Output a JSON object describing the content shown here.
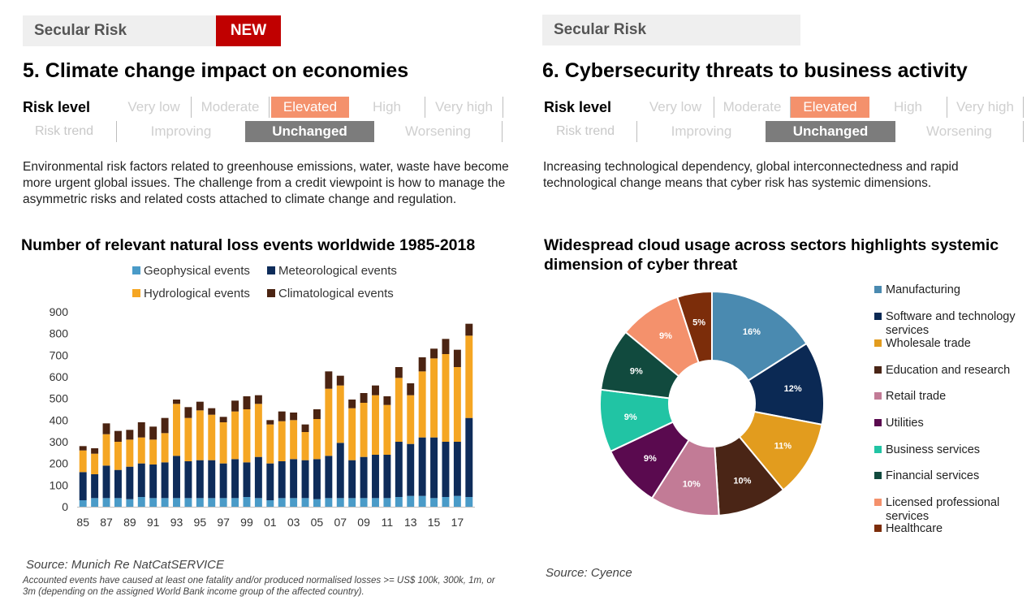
{
  "left": {
    "tag": "Secular Risk",
    "new_tag": "NEW",
    "title": "5. Climate change impact on economies",
    "risk_level_label": "Risk level",
    "risk_level_options": [
      "Very low",
      "Moderate",
      "Elevated",
      "High",
      "Very high"
    ],
    "risk_level_selected": "Elevated",
    "risk_trend_label": "Risk trend",
    "risk_trend_options": [
      "Improving",
      "Unchanged",
      "Worsening"
    ],
    "risk_trend_selected": "Unchanged",
    "description": "Environmental risk factors related to greenhouse emissions, water, waste have become more urgent global issues.  The challenge from a credit viewpoint is how to manage the asymmetric risks and related costs attached to climate change and regulation.",
    "chart_title": "Number of relevant natural loss events worldwide 1985-2018",
    "source": "Source: Munich Re NatCatSERVICE",
    "footnote": "Accounted events have caused at least one fatality and/or produced normalised losses >= US$ 100k, 300k, 1m, or 3m (depending on the assigned World Bank income group of the affected country)."
  },
  "right": {
    "tag": "Secular Risk",
    "title": "6. Cybersecurity threats to business activity",
    "risk_level_label": "Risk level",
    "risk_level_options": [
      "Very low",
      "Moderate",
      "Elevated",
      "High",
      "Very high"
    ],
    "risk_level_selected": "Elevated",
    "risk_trend_label": "Risk trend",
    "risk_trend_options": [
      "Improving",
      "Unchanged",
      "Worsening"
    ],
    "risk_trend_selected": "Unchanged",
    "description": "Increasing technological dependency, global interconnectedness and rapid technological change means that cyber risk has systemic dimensions.",
    "chart_title": "Widespread cloud usage across sectors highlights systemic dimension of cyber threat",
    "source": "Source: Cyence"
  },
  "colors": {
    "geophysical": "#4a9bc8",
    "meteorological": "#0e2c5a",
    "hydrological": "#f5a623",
    "climatological": "#4b2412",
    "elevated": "#f4916c",
    "unchanged": "#7c7c7c",
    "new_tag": "#c00000"
  },
  "chart_data": [
    {
      "type": "bar",
      "stacked": true,
      "title": "Number of relevant natural loss events worldwide 1985-2018",
      "categories": [
        "85",
        "86",
        "87",
        "88",
        "89",
        "90",
        "91",
        "92",
        "93",
        "94",
        "95",
        "96",
        "97",
        "98",
        "99",
        "00",
        "01",
        "02",
        "03",
        "04",
        "05",
        "06",
        "07",
        "08",
        "09",
        "10",
        "11",
        "12",
        "13",
        "14",
        "15",
        "16",
        "17",
        "18"
      ],
      "x_tick_labels": [
        "85",
        "87",
        "89",
        "91",
        "93",
        "95",
        "97",
        "99",
        "01",
        "03",
        "05",
        "07",
        "09",
        "11",
        "13",
        "15",
        "17"
      ],
      "y_ticks": [
        "0",
        "100",
        "200",
        "300",
        "400",
        "500",
        "600",
        "700",
        "800",
        "900"
      ],
      "ylim": [
        0,
        900
      ],
      "grid": false,
      "legend_position": "top",
      "series": [
        {
          "name": "Geophysical events",
          "color": "#4a9bc8",
          "values": [
            30,
            40,
            40,
            40,
            35,
            45,
            40,
            40,
            40,
            40,
            40,
            40,
            40,
            40,
            45,
            40,
            30,
            40,
            40,
            40,
            35,
            40,
            40,
            40,
            40,
            40,
            40,
            45,
            50,
            50,
            40,
            45,
            50,
            45
          ]
        },
        {
          "name": "Meteorological events",
          "color": "#0e2c5a",
          "values": [
            130,
            110,
            150,
            130,
            150,
            155,
            155,
            165,
            195,
            170,
            175,
            175,
            160,
            180,
            160,
            190,
            170,
            170,
            180,
            175,
            185,
            195,
            255,
            175,
            190,
            200,
            200,
            255,
            240,
            270,
            280,
            255,
            250,
            365
          ]
        },
        {
          "name": "Hydrological events",
          "color": "#f5a623",
          "values": [
            100,
            95,
            145,
            130,
            125,
            120,
            115,
            135,
            240,
            200,
            230,
            210,
            190,
            220,
            245,
            245,
            180,
            185,
            180,
            130,
            185,
            310,
            265,
            240,
            250,
            275,
            230,
            295,
            225,
            305,
            365,
            405,
            345,
            380
          ]
        },
        {
          "name": "Climatological events",
          "color": "#4b2412",
          "values": [
            20,
            25,
            50,
            50,
            45,
            70,
            60,
            70,
            20,
            50,
            40,
            30,
            25,
            50,
            60,
            40,
            20,
            45,
            35,
            35,
            45,
            80,
            45,
            40,
            45,
            45,
            40,
            50,
            55,
            65,
            45,
            70,
            80,
            55
          ]
        }
      ]
    },
    {
      "type": "pie",
      "donut": true,
      "title": "Widespread cloud usage across sectors highlights systemic dimension of cyber threat",
      "legend_position": "right",
      "slices": [
        {
          "label": "Manufacturing",
          "value": 16,
          "display": "16%",
          "color": "#4a8ab0"
        },
        {
          "label": "Software and technology services",
          "value": 12,
          "display": "12%",
          "color": "#0b2954"
        },
        {
          "label": "Wholesale trade",
          "value": 11,
          "display": "11%",
          "color": "#e29c1e"
        },
        {
          "label": "Education and research",
          "value": 10,
          "display": "10%",
          "color": "#4a2516"
        },
        {
          "label": "Retail trade",
          "value": 10,
          "display": "10%",
          "color": "#c27b96"
        },
        {
          "label": "Utilities",
          "value": 9,
          "display": "9%",
          "color": "#5a0a4f"
        },
        {
          "label": "Business services",
          "value": 9,
          "display": "9%",
          "color": "#21c4a4"
        },
        {
          "label": "Financial services",
          "value": 9,
          "display": "9%",
          "color": "#114a3e"
        },
        {
          "label": "Licensed professional services",
          "value": 9,
          "display": "9%",
          "color": "#f4916c"
        },
        {
          "label": "Healthcare",
          "value": 5,
          "display": "5%",
          "color": "#7c2d0a"
        }
      ]
    }
  ]
}
